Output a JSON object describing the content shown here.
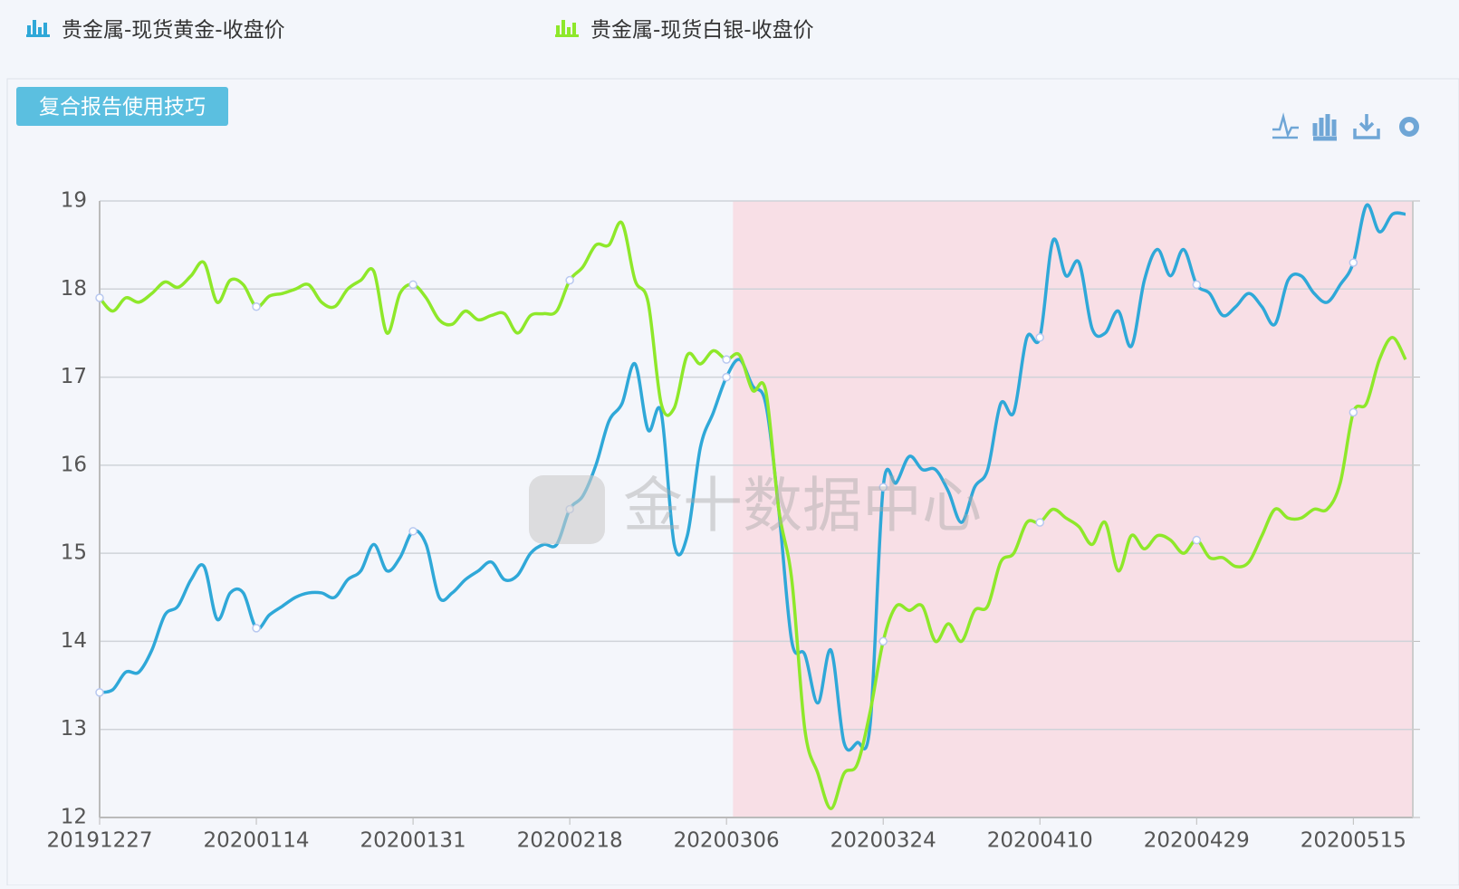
{
  "button": "复合报告使用技巧",
  "watermark": "金十数据中心",
  "chart_data": {
    "type": "line",
    "categories": [
      "20191227",
      null,
      null,
      null,
      null,
      null,
      null,
      null,
      null,
      null,
      null,
      null,
      "20200114",
      null,
      null,
      null,
      null,
      null,
      null,
      null,
      null,
      null,
      null,
      null,
      "20200131",
      null,
      null,
      null,
      null,
      null,
      null,
      null,
      null,
      null,
      null,
      null,
      "20200218",
      null,
      null,
      null,
      null,
      null,
      null,
      null,
      null,
      null,
      null,
      null,
      "20200306",
      null,
      null,
      null,
      null,
      null,
      null,
      null,
      null,
      null,
      null,
      null,
      "20200324",
      null,
      null,
      null,
      null,
      null,
      null,
      null,
      null,
      null,
      null,
      null,
      "20200410",
      null,
      null,
      null,
      null,
      null,
      null,
      null,
      null,
      null,
      null,
      null,
      "20200429",
      null,
      null,
      null,
      null,
      null,
      null,
      null,
      null,
      null,
      null,
      null,
      "20200515",
      null,
      null,
      null,
      null
    ],
    "series": [
      {
        "name": "贵金属-现货黄金-收盘价",
        "color": "#2fa8d8",
        "values": [
          13.42,
          13.45,
          13.65,
          13.65,
          13.9,
          14.3,
          14.4,
          14.7,
          14.85,
          14.25,
          14.55,
          14.55,
          14.15,
          14.3,
          14.4,
          14.5,
          14.55,
          14.55,
          14.5,
          14.7,
          14.8,
          15.1,
          14.8,
          14.95,
          15.25,
          15.1,
          14.5,
          14.55,
          14.7,
          14.8,
          14.9,
          14.7,
          14.75,
          15.0,
          15.1,
          15.1,
          15.5,
          15.65,
          16.0,
          16.5,
          16.7,
          17.15,
          16.4,
          16.6,
          15.1,
          15.2,
          16.2,
          16.6,
          17.0,
          17.2,
          16.9,
          16.7,
          15.5,
          14.0,
          13.85,
          13.3,
          13.9,
          12.85,
          12.85,
          13.05,
          15.75,
          15.8,
          16.1,
          15.95,
          15.95,
          15.7,
          15.35,
          15.75,
          15.95,
          16.7,
          16.6,
          17.45,
          17.45,
          18.55,
          18.15,
          18.3,
          17.55,
          17.5,
          17.75,
          17.35,
          18.1,
          18.45,
          18.15,
          18.45,
          18.05,
          17.95,
          17.7,
          17.8,
          17.95,
          17.8,
          17.6,
          18.1,
          18.15,
          17.95,
          17.85,
          18.05,
          18.3,
          18.95,
          18.65,
          18.85,
          18.85
        ]
      },
      {
        "name": "贵金属-现货白银-收盘价",
        "color": "#8ee82a",
        "values": [
          17.9,
          17.75,
          17.9,
          17.85,
          17.95,
          18.08,
          18.02,
          18.15,
          18.3,
          17.85,
          18.1,
          18.05,
          17.8,
          17.92,
          17.95,
          18.0,
          18.05,
          17.85,
          17.8,
          18.0,
          18.1,
          18.2,
          17.5,
          17.95,
          18.05,
          17.9,
          17.65,
          17.6,
          17.75,
          17.65,
          17.7,
          17.72,
          17.5,
          17.7,
          17.72,
          17.75,
          18.1,
          18.25,
          18.5,
          18.5,
          18.75,
          18.1,
          17.85,
          16.7,
          16.65,
          17.25,
          17.15,
          17.3,
          17.2,
          17.25,
          16.85,
          16.85,
          15.5,
          14.7,
          13.0,
          12.5,
          12.1,
          12.5,
          12.6,
          13.2,
          14.0,
          14.4,
          14.35,
          14.4,
          14.0,
          14.2,
          14.0,
          14.35,
          14.4,
          14.9,
          15.0,
          15.35,
          15.35,
          15.5,
          15.4,
          15.3,
          15.1,
          15.35,
          14.8,
          15.2,
          15.05,
          15.2,
          15.15,
          15.0,
          15.15,
          14.95,
          14.95,
          14.85,
          14.9,
          15.2,
          15.5,
          15.4,
          15.4,
          15.5,
          15.5,
          15.8,
          16.6,
          16.7,
          17.2,
          17.45,
          17.2
        ]
      }
    ],
    "ylim": [
      12,
      19
    ],
    "yticks": [
      12,
      13,
      14,
      15,
      16,
      17,
      18,
      19
    ],
    "grid": true,
    "highlight": {
      "start": 49,
      "end": 100,
      "color": "#f8dfe6"
    }
  }
}
